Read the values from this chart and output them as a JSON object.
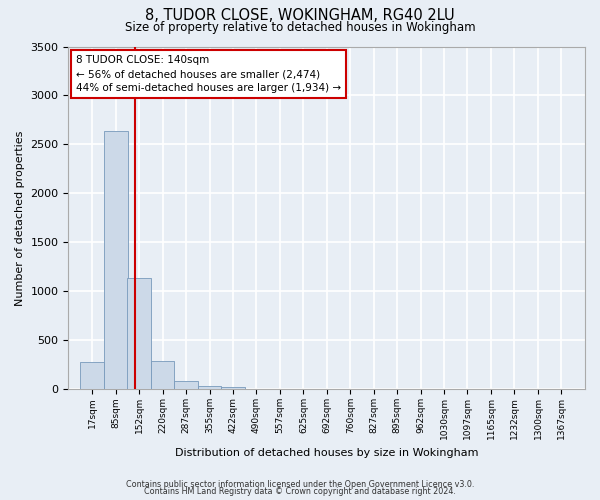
{
  "title": "8, TUDOR CLOSE, WOKINGHAM, RG40 2LU",
  "subtitle": "Size of property relative to detached houses in Wokingham",
  "xlabel": "Distribution of detached houses by size in Wokingham",
  "ylabel": "Number of detached properties",
  "bar_labels": [
    "17sqm",
    "85sqm",
    "152sqm",
    "220sqm",
    "287sqm",
    "355sqm",
    "422sqm",
    "490sqm",
    "557sqm",
    "625sqm",
    "692sqm",
    "760sqm",
    "827sqm",
    "895sqm",
    "962sqm",
    "1030sqm",
    "1097sqm",
    "1165sqm",
    "1232sqm",
    "1300sqm",
    "1367sqm"
  ],
  "bar_values": [
    280,
    2640,
    1140,
    290,
    85,
    30,
    20,
    0,
    0,
    0,
    0,
    0,
    0,
    0,
    0,
    0,
    0,
    0,
    0,
    0,
    0
  ],
  "bar_color": "#ccd9e8",
  "bar_edge_color": "#7799bb",
  "ylim": [
    0,
    3500
  ],
  "yticks": [
    0,
    500,
    1000,
    1500,
    2000,
    2500,
    3000,
    3500
  ],
  "vline_color": "#cc0000",
  "annotation_line1": "8 TUDOR CLOSE: 140sqm",
  "annotation_line2": "← 56% of detached houses are smaller (2,474)",
  "annotation_line3": "44% of semi-detached houses are larger (1,934) →",
  "annotation_box_facecolor": "#ffffff",
  "annotation_box_edgecolor": "#cc0000",
  "bg_color": "#e8eef5",
  "grid_color": "#ffffff",
  "footer1": "Contains HM Land Registry data © Crown copyright and database right 2024.",
  "footer2": "Contains public sector information licensed under the Open Government Licence v3.0."
}
